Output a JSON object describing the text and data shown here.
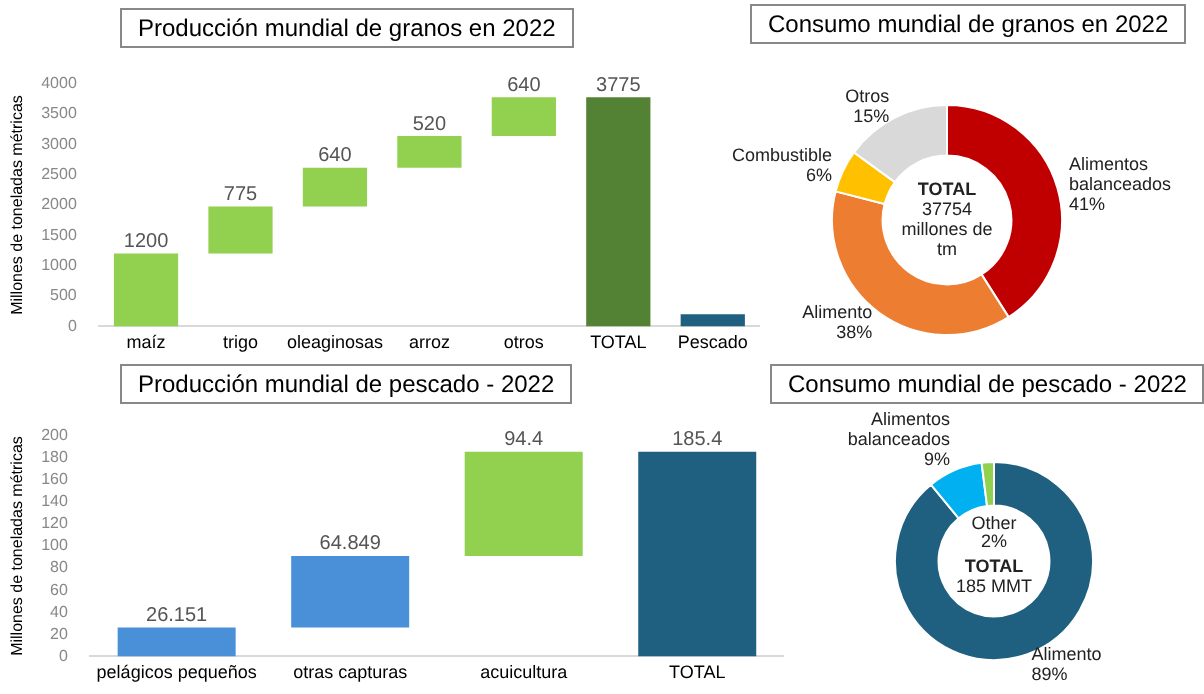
{
  "chart_data": [
    {
      "type": "bar",
      "title": "Producción mundial de granos en 2022",
      "ylabel": "Millones de toneladas métricas",
      "categories": [
        "maíz",
        "trigo",
        "oleaginosas",
        "arroz",
        "otros",
        "TOTAL",
        "Pescado"
      ],
      "values": [
        1200,
        775,
        640,
        520,
        640,
        3775,
        200
      ],
      "base": [
        0,
        1200,
        1975,
        2615,
        3135,
        0,
        0
      ],
      "colors": [
        "#92d050",
        "#92d050",
        "#92d050",
        "#92d050",
        "#92d050",
        "#548235",
        "#1f5f7f"
      ],
      "value_labels": [
        "1200",
        "775",
        "640",
        "520",
        "640",
        "3775",
        null
      ],
      "ylim": [
        0,
        4000
      ],
      "yticks": [
        0,
        500,
        1000,
        1500,
        2000,
        2500,
        3000,
        3500,
        4000
      ],
      "grid": false,
      "legend": false
    },
    {
      "type": "donut",
      "title": "Consumo mundial de granos en 2022",
      "categories": [
        "Alimentos balanceados",
        "Alimento",
        "Combustible",
        "Otros"
      ],
      "values": [
        41,
        38,
        6,
        15
      ],
      "colors": [
        "#c00000",
        "#ed7d31",
        "#ffc000",
        "#d9d9d9"
      ],
      "value_labels": [
        "41%",
        "38%",
        "6%",
        "15%"
      ],
      "annotations": [
        "TOTAL",
        "37754",
        "millones de",
        "tm"
      ],
      "legend": false
    },
    {
      "type": "bar",
      "title": "Producción mundial de pescado - 2022",
      "ylabel": "Millones de toneladas métricas",
      "categories": [
        "pelágicos pequeños",
        "otras capturas",
        "acuicultura",
        "TOTAL"
      ],
      "values": [
        26.151,
        64.849,
        94.4,
        185.4
      ],
      "base": [
        0,
        26.151,
        91,
        0
      ],
      "colors": [
        "#4a90d9",
        "#4a90d9",
        "#92d050",
        "#1f5f7f"
      ],
      "data_labels": true,
      "ylim": [
        0,
        200
      ],
      "yticks": [
        0,
        20,
        40,
        60,
        80,
        100,
        120,
        140,
        160,
        180,
        200
      ],
      "grid": false,
      "legend": false
    },
    {
      "type": "donut",
      "title": "Consumo mundial de pescado - 2022",
      "categories": [
        "Alimento",
        "Alimentos balanceados",
        "Other"
      ],
      "values": [
        89,
        9,
        2
      ],
      "colors": [
        "#1f5f7f",
        "#00b0f0",
        "#92d050"
      ],
      "value_labels": [
        "89%",
        "9%",
        "2%"
      ],
      "annotations": [
        "TOTAL",
        "185 MMT"
      ],
      "legend": false
    }
  ]
}
